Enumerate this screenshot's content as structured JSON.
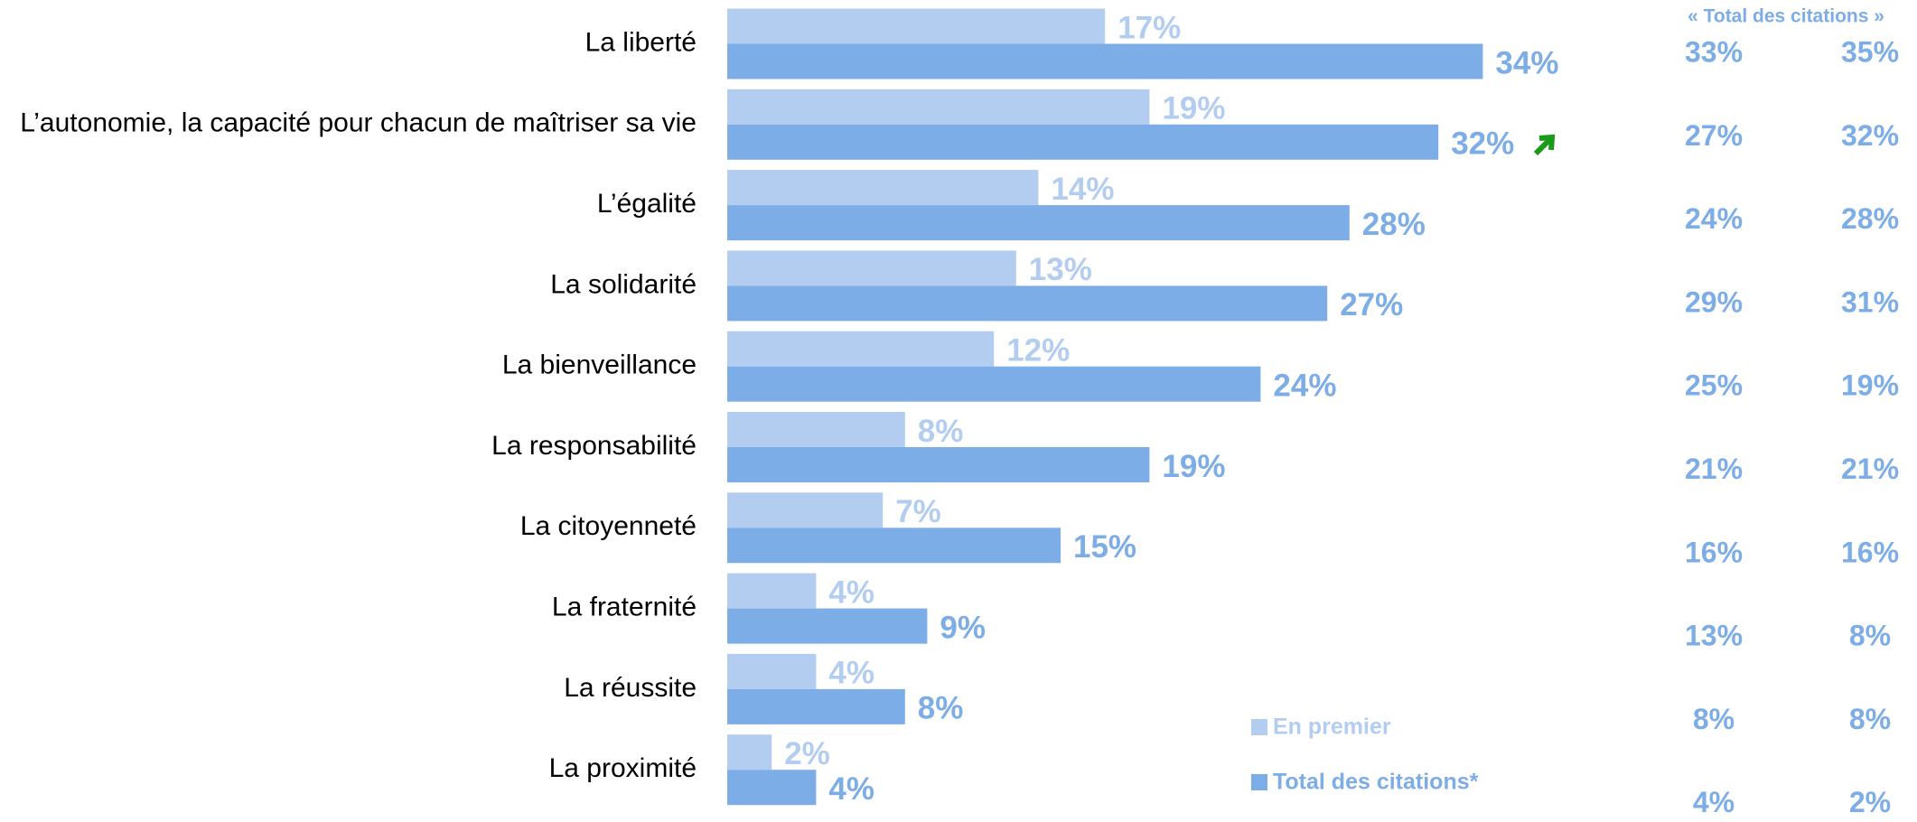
{
  "chart_data": {
    "type": "bar",
    "orientation": "horizontal",
    "categories": [
      "La liberté",
      "L’autonomie, la capacité pour chacun de maîtriser sa vie",
      "L’égalité",
      "La solidarité",
      "La bienveillance",
      "La responsabilité",
      "La citoyenneté",
      "La fraternité",
      "La réussite",
      "La proximité"
    ],
    "series": [
      {
        "name": "En premier",
        "color": "#b3cdf1",
        "values": [
          17,
          19,
          14,
          13,
          12,
          8,
          7,
          4,
          4,
          2
        ],
        "value_labels": [
          "17%",
          "19%",
          "14%",
          "13%",
          "12%",
          "8%",
          "7%",
          "4%",
          "4%",
          "2%"
        ]
      },
      {
        "name": "Total des citations*",
        "color": "#7dade6",
        "values": [
          34,
          32,
          28,
          27,
          24,
          19,
          15,
          9,
          8,
          4
        ],
        "value_labels": [
          "34%",
          "32%",
          "28%",
          "27%",
          "24%",
          "19%",
          "15%",
          "9%",
          "8%",
          "4%"
        ]
      }
    ],
    "columns_title": "« Total des citations »",
    "columns": [
      {
        "values": [
          33,
          27,
          24,
          29,
          25,
          21,
          16,
          13,
          8,
          4
        ],
        "value_labels": [
          "33%",
          "27%",
          "24%",
          "29%",
          "25%",
          "21%",
          "16%",
          "13%",
          "8%",
          "4%"
        ]
      },
      {
        "values": [
          35,
          32,
          28,
          31,
          19,
          21,
          16,
          8,
          8,
          2
        ],
        "value_labels": [
          "35%",
          "32%",
          "28%",
          "31%",
          "19%",
          "21%",
          "16%",
          "8%",
          "8%",
          "2%"
        ]
      }
    ]
  }
}
